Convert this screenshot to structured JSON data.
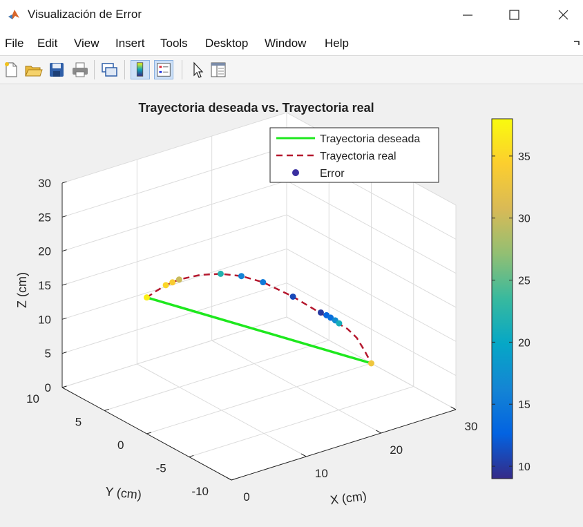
{
  "window": {
    "title": "Visualización de Error",
    "minimize_glyph": "—",
    "maximize_glyph": "☐",
    "close_glyph": "✕"
  },
  "menu": {
    "items": [
      "File",
      "Edit",
      "View",
      "Insert",
      "Tools",
      "Desktop",
      "Window",
      "Help"
    ]
  },
  "toolbar": {
    "icons": [
      "new-figure-icon",
      "open-file-icon",
      "save-icon",
      "print-icon",
      "link-plot-icon",
      "colorbar-icon",
      "legend-icon",
      "pointer-icon",
      "property-editor-icon"
    ]
  },
  "chart_data": {
    "type": "line3d",
    "title": "Trayectoria deseada vs. Trayectoria real",
    "xlabel": "X (cm)",
    "ylabel": "Y (cm)",
    "zlabel": "Z (cm)",
    "xlim": [
      0,
      30
    ],
    "ylim": [
      -10,
      10
    ],
    "zlim": [
      0,
      30
    ],
    "x_ticks": [
      "0",
      "10",
      "20",
      "30"
    ],
    "y_ticks": [
      "-10",
      "-5",
      "0",
      "5",
      "10"
    ],
    "z_ticks": [
      "0",
      "5",
      "10",
      "15",
      "20",
      "25",
      "30"
    ],
    "grid": true,
    "legend_position": "top-right",
    "legend": [
      {
        "label": "Trayectoria deseada",
        "style": "solid",
        "color": "#1ee81e"
      },
      {
        "label": "Trayectoria real",
        "style": "dashed",
        "color": "#b5182e"
      },
      {
        "label": "Error",
        "style": "marker",
        "color": "#3a2fa0"
      }
    ],
    "series": [
      {
        "name": "Trayectoria deseada",
        "points": [
          [
            0,
            0,
            20
          ],
          [
            30,
            0,
            0
          ]
        ]
      },
      {
        "name": "Trayectoria real",
        "points": [
          [
            0,
            0,
            20
          ],
          [
            1.5,
            0.2,
            20.3
          ],
          [
            3,
            0.4,
            20.5
          ],
          [
            5,
            0.6,
            20.5
          ],
          [
            8,
            0.8,
            20
          ],
          [
            11,
            1,
            19
          ],
          [
            14,
            1.2,
            17.5
          ],
          [
            17,
            1.3,
            15.5
          ],
          [
            21,
            1.3,
            12
          ],
          [
            24,
            1.2,
            9
          ],
          [
            25.5,
            1,
            7.5
          ],
          [
            26.5,
            0.8,
            6.5
          ],
          [
            27.5,
            0.6,
            5.5
          ],
          [
            28.5,
            0.4,
            4
          ],
          [
            29.3,
            0.2,
            2
          ],
          [
            30,
            0,
            0
          ]
        ]
      }
    ],
    "error_markers": [
      {
        "x": 0,
        "y": 0,
        "z": 20,
        "error": 37
      },
      {
        "x": 3,
        "y": 0.4,
        "z": 20.5,
        "error": 35
      },
      {
        "x": 4,
        "y": 0.5,
        "z": 20.5,
        "error": 34
      },
      {
        "x": 5,
        "y": 0.6,
        "z": 20.5,
        "error": 30
      },
      {
        "x": 11,
        "y": 1,
        "z": 19,
        "error": 22
      },
      {
        "x": 14,
        "y": 1.2,
        "z": 17.5,
        "error": 16
      },
      {
        "x": 17,
        "y": 1.3,
        "z": 15.5,
        "error": 15
      },
      {
        "x": 21,
        "y": 1.3,
        "z": 12,
        "error": 11
      },
      {
        "x": 24.5,
        "y": 1.1,
        "z": 8.6,
        "error": 10
      },
      {
        "x": 25.2,
        "y": 1.05,
        "z": 8.0,
        "error": 13
      },
      {
        "x": 25.7,
        "y": 1,
        "z": 7.5,
        "error": 14
      },
      {
        "x": 26.2,
        "y": 0.9,
        "z": 7,
        "error": 17
      },
      {
        "x": 26.6,
        "y": 0.8,
        "z": 6.5,
        "error": 21
      },
      {
        "x": 30,
        "y": 0,
        "z": 0,
        "error": 33
      }
    ],
    "colorbar": {
      "colormap": "parula",
      "range": [
        9,
        38
      ],
      "ticks": [
        10,
        15,
        20,
        25,
        30,
        35
      ],
      "tick_labels": [
        "10",
        "15",
        "20",
        "25",
        "30",
        "35"
      ]
    }
  }
}
